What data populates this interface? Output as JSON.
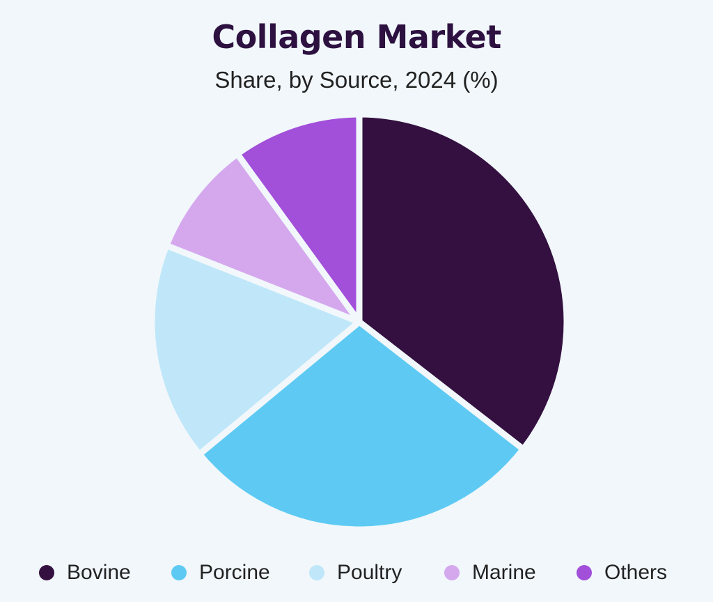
{
  "chart_data": {
    "type": "pie",
    "title": "Collagen Market",
    "subtitle": "Share, by Source, 2024 (%)",
    "series": [
      {
        "name": "Bovine",
        "value": 35.5,
        "color": "#33103f"
      },
      {
        "name": "Porcine",
        "value": 28.5,
        "color": "#5ecaf3"
      },
      {
        "name": "Poultry",
        "value": 17.0,
        "color": "#bfe7f9"
      },
      {
        "name": "Marine",
        "value": 9.0,
        "color": "#d5a8ee"
      },
      {
        "name": "Others",
        "value": 10.0,
        "color": "#a24fd9"
      }
    ],
    "start_angle_deg": 0,
    "direction": "clockwise",
    "legend": "bottom"
  }
}
